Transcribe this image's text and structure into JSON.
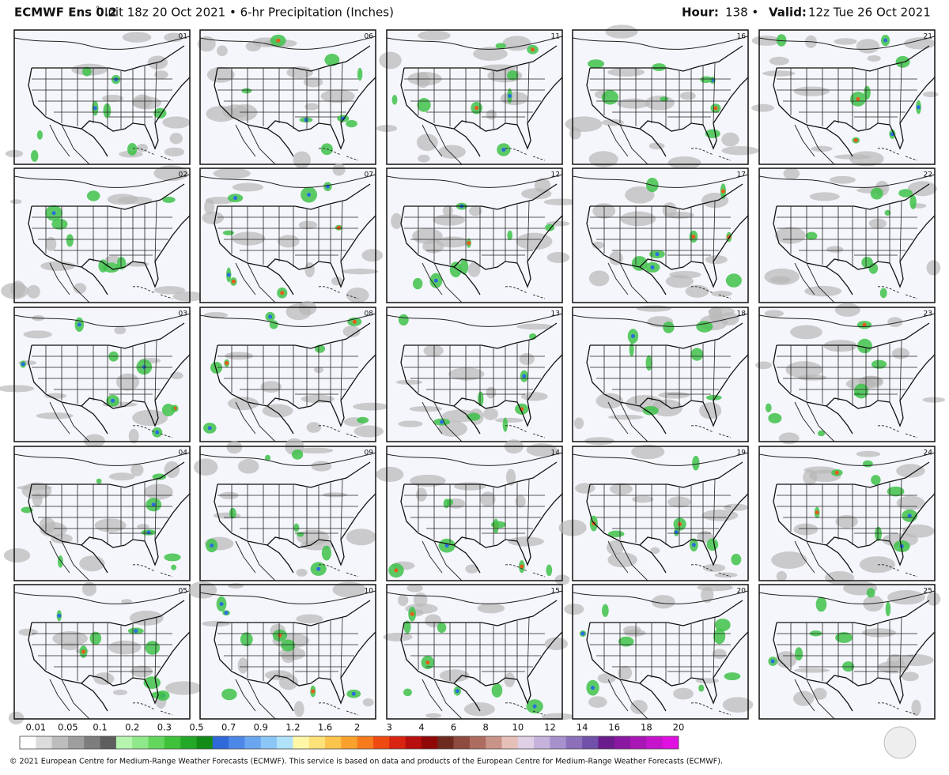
{
  "header": {
    "model": "ECMWF Ens 0.2",
    "degree": "°",
    "description": "Init 18z 20 Oct 2021 • 6-hr Precipitation (Inches)",
    "hour_label": "Hour:",
    "hour_value": "138 •",
    "valid_label": "Valid:",
    "valid_value": "12z Tue 26 Oct 2021"
  },
  "panels": [
    "01",
    "02",
    "03",
    "04",
    "05",
    "06",
    "07",
    "08",
    "09",
    "10",
    "11",
    "12",
    "13",
    "14",
    "15",
    "16",
    "17",
    "18",
    "19",
    "20",
    "21",
    "22",
    "23",
    "24",
    "25"
  ],
  "colorbar": {
    "labels": [
      "0.01",
      "0.05",
      "0.1",
      "0.2",
      "0.3",
      "0.5",
      "0.7",
      "0.9",
      "1.2",
      "1.6",
      "2",
      "3",
      "4",
      "6",
      "8",
      "10",
      "12",
      "14",
      "16",
      "18",
      "20"
    ]
  },
  "footer": "© 2021 European Centre for Medium-Range Weather Forecasts (ECMWF). This service is based on data and products of the European Centre for Medium-Range Weather Forecasts (ECMWF)."
}
